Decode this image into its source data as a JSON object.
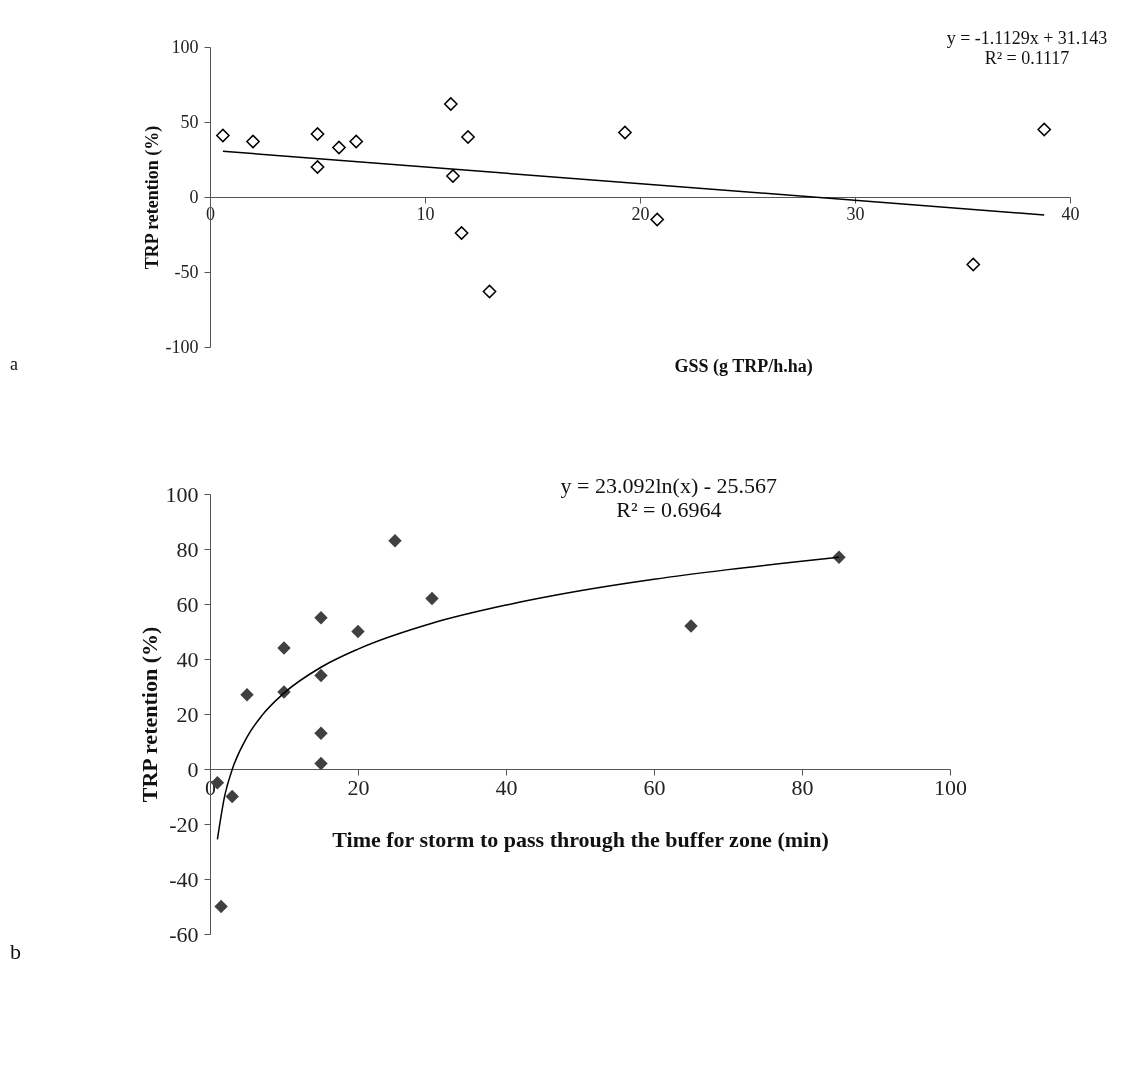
{
  "chart_data": [
    {
      "type": "scatter",
      "xlabel": "GSS (g TRP/h.ha)",
      "ylabel": "TRP retention (%)",
      "annotations": [
        "y = -1.1129x + 31.143",
        "R² = 0.1117",
        "a"
      ],
      "x": [
        0.6,
        2,
        5,
        5,
        6,
        6.8,
        11.2,
        11.3,
        11.7,
        12,
        13,
        19.3,
        20.8,
        35.5,
        38.8
      ],
      "series": [
        {
          "marker": "diamond",
          "color": "#000000",
          "values": [
            41,
            37,
            42,
            20,
            33,
            37,
            62,
            14,
            -24,
            40,
            -63,
            43,
            -15,
            -45,
            45
          ]
        },
        {
          "type": "line",
          "marker": "none",
          "color": "#000000",
          "x": [
            0.6,
            38.8
          ],
          "values": [
            30.5,
            -12.0
          ]
        }
      ],
      "xlim": [
        0,
        40
      ],
      "xticks": [
        0,
        10,
        20,
        30,
        40
      ],
      "ylim": [
        -100,
        100
      ],
      "yticks": [
        -100,
        -50,
        0,
        50,
        100
      ],
      "grid": false
    },
    {
      "type": "scatter",
      "xlabel": "Time for storm to pass through the buffer zone (min)",
      "ylabel": "TRP retention (%)",
      "annotations": [
        "y = 23.092ln(x) - 25.567",
        "R² = 0.6964",
        "b"
      ],
      "x": [
        1,
        1.5,
        3,
        5,
        10,
        10,
        15,
        15,
        15,
        15,
        20,
        25,
        30,
        65,
        85
      ],
      "series": [
        {
          "marker": "diamond",
          "color": "#404040",
          "values": [
            -5,
            -50,
            -10,
            27,
            44,
            28,
            55,
            34,
            13,
            2,
            50,
            83,
            62,
            52,
            77
          ]
        },
        {
          "type": "line",
          "marker": "none",
          "color": "#000000",
          "x": [
            1,
            2,
            3,
            5,
            7,
            10,
            15,
            20,
            30,
            40,
            50,
            60,
            70,
            85
          ],
          "values": [
            -25.6,
            -9.6,
            -0.2,
            11.6,
            19.4,
            27.6,
            37.0,
            43.6,
            53.0,
            59.6,
            64.8,
            69.0,
            72.5,
            77.0
          ]
        }
      ],
      "xlim": [
        0,
        100
      ],
      "xticks": [
        0,
        20,
        40,
        60,
        80,
        100
      ],
      "ylim": [
        -60,
        100
      ],
      "yticks": [
        -60,
        -40,
        -20,
        0,
        20,
        40,
        60,
        80,
        100
      ],
      "grid": false
    }
  ]
}
